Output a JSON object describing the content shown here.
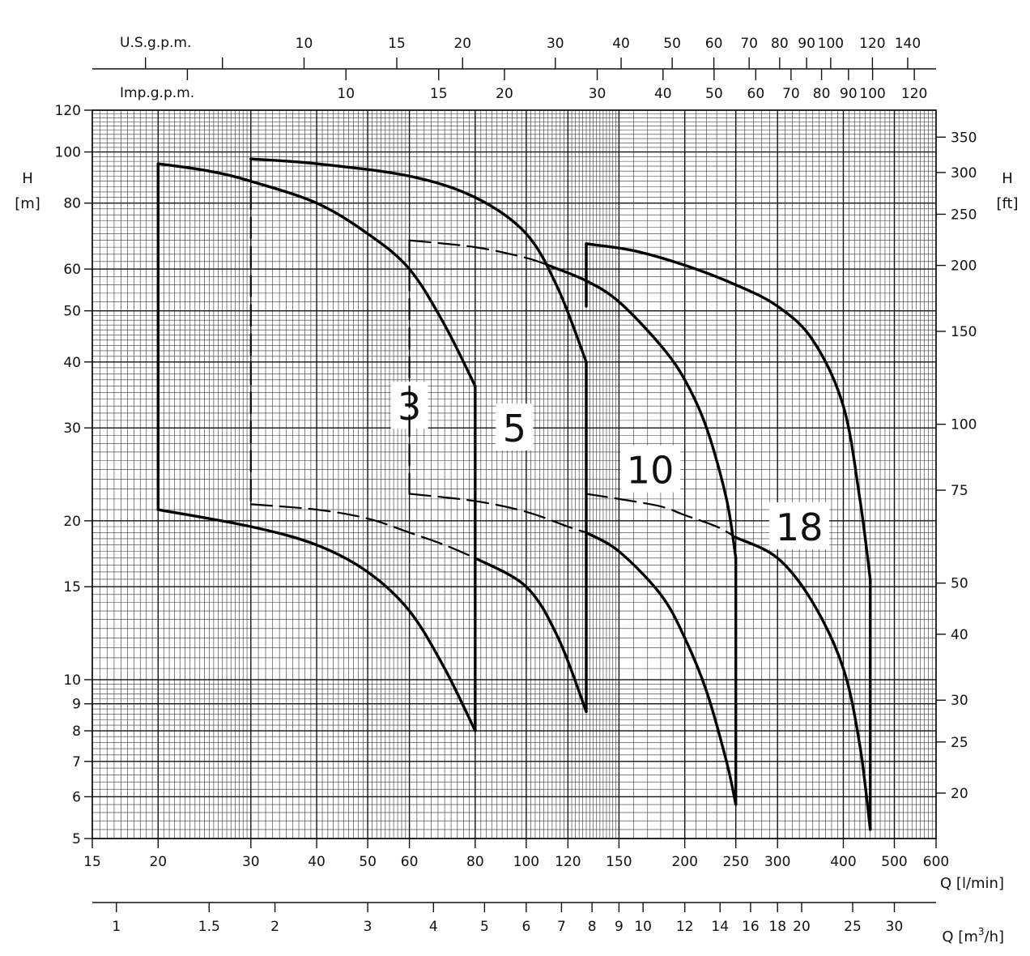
{
  "chart_data": {
    "type": "line",
    "x_scale": "log",
    "y_scale": "log",
    "xlim": [
      15,
      600
    ],
    "ylim": [
      5,
      120
    ],
    "grid": true,
    "x_unit_label": "Q [l/min]",
    "y_unit_label_left": [
      "H",
      "[m]"
    ],
    "y_unit_label_right": [
      "H",
      "[ft]"
    ],
    "top_axis1_label": "U.S.g.p.m.",
    "top_axis2_label": "Imp.g.p.m.",
    "m3h_unit_label": "Q [m",
    "m3h_unit_sup": "3",
    "m3h_unit_tail": "/h]",
    "x_ticks": [
      "15",
      "20",
      "30",
      "40",
      "50",
      "60",
      "80",
      "100",
      "120",
      "150",
      "200",
      "250",
      "300",
      "400",
      "500",
      "600"
    ],
    "y_ticks": [
      "5",
      "6",
      "7",
      "8",
      "9",
      "10",
      "15",
      "20",
      "30",
      "40",
      "50",
      "60",
      "80",
      "100",
      "120"
    ],
    "ft_ticks": [
      "20",
      "25",
      "30",
      "40",
      "50",
      "75",
      "100",
      "150",
      "200",
      "250",
      "300",
      "350"
    ],
    "m3h_ticks": [
      "1",
      "1.5",
      "2",
      "3",
      "4",
      "5",
      "6",
      "7",
      "8",
      "9",
      "10",
      "12",
      "14",
      "16",
      "18",
      "20",
      "25",
      "30"
    ],
    "usgpm_ticks": [
      "10",
      "15",
      "20",
      "30",
      "40",
      "50",
      "60",
      "70",
      "80",
      "90",
      "100",
      "120",
      "140"
    ],
    "impgpm_ticks": [
      "10",
      "15",
      "20",
      "30",
      "40",
      "50",
      "60",
      "70",
      "80",
      "90",
      "100",
      "120"
    ],
    "series": [
      {
        "name": "3",
        "label_at": [
          60,
          33
        ],
        "envelope": [
          {
            "style": "solid",
            "points": [
              [
                20,
                95
              ],
              [
                20,
                21
              ]
            ]
          },
          {
            "style": "solid",
            "points": [
              [
                20,
                95
              ],
              [
                25,
                92
              ],
              [
                30,
                88
              ],
              [
                40,
                80
              ],
              [
                50,
                70
              ],
              [
                60,
                60
              ],
              [
                70,
                47
              ],
              [
                80,
                36
              ]
            ]
          },
          {
            "style": "solid",
            "points": [
              [
                80,
                36
              ],
              [
                80,
                8
              ]
            ]
          },
          {
            "style": "solid",
            "points": [
              [
                20,
                21
              ],
              [
                30,
                19.5
              ],
              [
                40,
                18
              ],
              [
                50,
                16
              ],
              [
                60,
                13.5
              ],
              [
                70,
                10.5
              ],
              [
                80,
                8
              ]
            ]
          }
        ]
      },
      {
        "name": "5",
        "label_at": [
          95,
          30
        ],
        "envelope": [
          {
            "style": "dashed",
            "points": [
              [
                30,
                97
              ],
              [
                30,
                21.5
              ]
            ]
          },
          {
            "style": "solid",
            "points": [
              [
                30,
                97
              ],
              [
                40,
                95
              ],
              [
                60,
                90
              ],
              [
                80,
                82
              ],
              [
                100,
                70
              ],
              [
                115,
                55
              ],
              [
                130,
                40
              ]
            ]
          },
          {
            "style": "solid",
            "points": [
              [
                130,
                40
              ],
              [
                130,
                8.7
              ]
            ]
          },
          {
            "style": "dashed",
            "points": [
              [
                30,
                21.5
              ],
              [
                40,
                21
              ],
              [
                50,
                20.2
              ],
              [
                60,
                19
              ],
              [
                70,
                18
              ],
              [
                80,
                17
              ]
            ]
          },
          {
            "style": "solid",
            "points": [
              [
                80,
                17
              ],
              [
                100,
                15
              ],
              [
                115,
                12
              ],
              [
                130,
                8.7
              ]
            ]
          }
        ]
      },
      {
        "name": "10",
        "label_at": [
          172,
          25
        ],
        "envelope": [
          {
            "style": "dashed",
            "points": [
              [
                60,
                68
              ],
              [
                60,
                22.5
              ]
            ]
          },
          {
            "style": "dashed",
            "points": [
              [
                60,
                68
              ],
              [
                80,
                66
              ],
              [
                100,
                63
              ],
              [
                110,
                61
              ]
            ]
          },
          {
            "style": "solid",
            "points": [
              [
                110,
                61
              ],
              [
                130,
                57
              ],
              [
                150,
                52
              ],
              [
                180,
                43
              ],
              [
                200,
                37
              ],
              [
                220,
                30
              ],
              [
                240,
                22
              ],
              [
                250,
                17
              ]
            ]
          },
          {
            "style": "solid",
            "points": [
              [
                250,
                17
              ],
              [
                250,
                5.8
              ]
            ]
          },
          {
            "style": "dashed",
            "points": [
              [
                60,
                22.5
              ],
              [
                80,
                21.8
              ],
              [
                100,
                20.8
              ],
              [
                120,
                19.5
              ],
              [
                130,
                19
              ]
            ]
          },
          {
            "style": "solid",
            "points": [
              [
                130,
                19
              ],
              [
                150,
                17.5
              ],
              [
                180,
                14.5
              ],
              [
                200,
                12
              ],
              [
                220,
                9.5
              ],
              [
                240,
                7
              ],
              [
                250,
                5.8
              ]
            ]
          }
        ]
      },
      {
        "name": "18",
        "label_at": [
          330,
          19.5
        ],
        "envelope": [
          {
            "style": "solid",
            "points": [
              [
                130,
                67
              ],
              [
                130,
                51
              ]
            ]
          },
          {
            "style": "solid",
            "points": [
              [
                130,
                67
              ],
              [
                160,
                65
              ],
              [
                200,
                61
              ],
              [
                250,
                56
              ],
              [
                300,
                51
              ],
              [
                350,
                44
              ],
              [
                400,
                33
              ],
              [
                430,
                22
              ],
              [
                450,
                15.5
              ]
            ]
          },
          {
            "style": "solid",
            "points": [
              [
                450,
                15.5
              ],
              [
                450,
                5.2
              ]
            ]
          },
          {
            "style": "dashed",
            "points": [
              [
                130,
                22.5
              ],
              [
                150,
                22
              ],
              [
                180,
                21.3
              ],
              [
                200,
                20.5
              ],
              [
                230,
                19.5
              ],
              [
                250,
                18.6
              ]
            ]
          },
          {
            "style": "solid",
            "points": [
              [
                250,
                18.6
              ],
              [
                300,
                17
              ],
              [
                350,
                14
              ],
              [
                400,
                10.5
              ],
              [
                430,
                7.5
              ],
              [
                450,
                5.2
              ]
            ]
          }
        ]
      }
    ]
  }
}
